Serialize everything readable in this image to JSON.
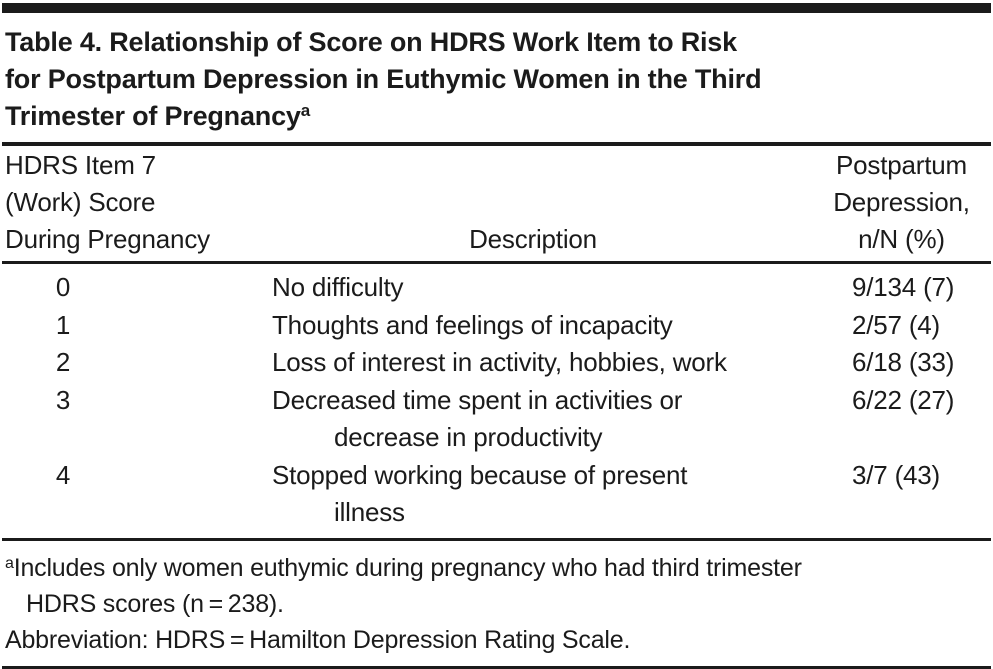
{
  "table": {
    "title_lines": [
      "Table 4. Relationship of Score on HDRS Work Item to Risk",
      "for Postpartum Depression in Euthymic Women in the Third",
      "Trimester of Pregnancy"
    ],
    "title_superscript": "a",
    "columns": {
      "score_header_lines": [
        "HDRS Item 7",
        "(Work) Score",
        "During Pregnancy"
      ],
      "description_header": "Description",
      "outcome_header_lines": [
        "Postpartum",
        "Depression,",
        "n/N (%)"
      ]
    },
    "rows": [
      {
        "score": "0",
        "description_lines": [
          "No difficulty"
        ],
        "value": "9/134 (7)"
      },
      {
        "score": "1",
        "description_lines": [
          "Thoughts and feelings of incapacity"
        ],
        "value": "2/57 (4)"
      },
      {
        "score": "2",
        "description_lines": [
          "Loss of interest in activity, hobbies, work"
        ],
        "value": "6/18 (33)"
      },
      {
        "score": "3",
        "description_lines": [
          "Decreased time spent in activities or",
          "decrease in productivity"
        ],
        "value": "6/22 (27)"
      },
      {
        "score": "4",
        "description_lines": [
          "Stopped working because of present",
          "illness"
        ],
        "value": "3/7 (43)"
      }
    ],
    "footnotes": {
      "a_marker": "a",
      "a_lines": [
        "Includes only women euthymic during pregnancy who had third trimester",
        "HDRS scores (n = 238)."
      ],
      "abbreviation": "Abbreviation: HDRS = Hamilton Depression Rating Scale."
    },
    "colors": {
      "text": "#1b1b1b",
      "rule": "#1b1b1b",
      "background": "#ffffff"
    }
  }
}
